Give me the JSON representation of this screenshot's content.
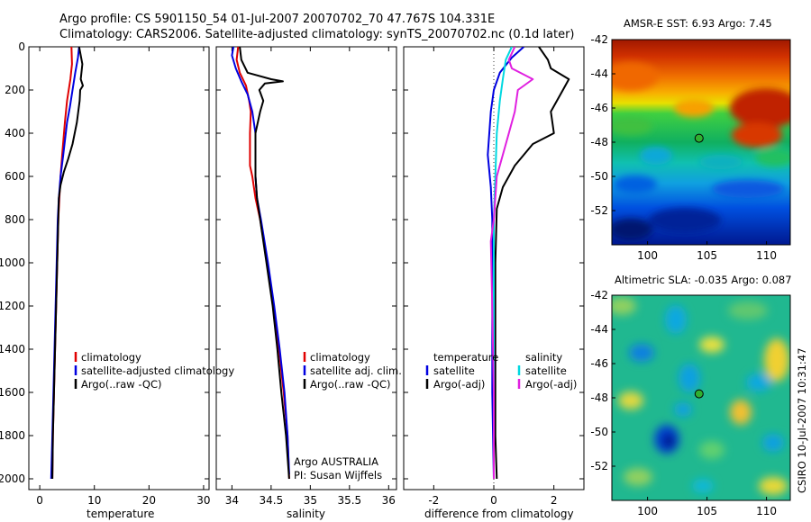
{
  "header": {
    "line1": "Argo profile: CS 5901150_54 01-Jul-2007 20070702_70 47.767S 104.331E",
    "line2": "Climatology: CARS2006. Satellite-adjusted climatology: synTS_20070702.nc (0.1d later)"
  },
  "credit": "CSIRO 10-Jul-2007 10:31:47",
  "colors": {
    "climatology": "#e00000",
    "satellite": "#0000e0",
    "argo": "#000000",
    "sal_satellite": "#00d8e0",
    "sal_argo": "#e020e0"
  },
  "chart_data": [
    {
      "type": "line",
      "xlabel": "temperature",
      "xlim": [
        -2,
        31
      ],
      "ylim": [
        2050,
        0
      ],
      "xticks": [
        0,
        10,
        20,
        30
      ],
      "yticks": [
        0,
        200,
        400,
        600,
        800,
        1000,
        1200,
        1400,
        1600,
        1800,
        2000
      ],
      "legend": [
        "climatology",
        "satellite-adjusted climatology",
        "Argo(..raw -QC)"
      ],
      "series": [
        {
          "name": "climatology",
          "color": "#e00000",
          "points": [
            [
              5.8,
              0
            ],
            [
              5.9,
              80
            ],
            [
              5.6,
              150
            ],
            [
              5.0,
              250
            ],
            [
              4.6,
              350
            ],
            [
              4.1,
              500
            ],
            [
              3.8,
              600
            ],
            [
              3.6,
              700
            ],
            [
              3.4,
              800
            ],
            [
              3.2,
              1000
            ],
            [
              3.0,
              1200
            ],
            [
              2.8,
              1400
            ],
            [
              2.6,
              1600
            ],
            [
              2.4,
              1800
            ],
            [
              2.3,
              2000
            ]
          ]
        },
        {
          "name": "satellite-adjusted climatology",
          "color": "#0000e0",
          "points": [
            [
              7.2,
              0
            ],
            [
              7.0,
              50
            ],
            [
              6.5,
              120
            ],
            [
              6.0,
              200
            ],
            [
              5.5,
              280
            ],
            [
              5.0,
              350
            ],
            [
              4.3,
              500
            ],
            [
              3.8,
              600
            ],
            [
              3.5,
              700
            ],
            [
              3.3,
              800
            ],
            [
              3.1,
              1000
            ],
            [
              2.9,
              1200
            ],
            [
              2.7,
              1400
            ],
            [
              2.5,
              1600
            ],
            [
              2.3,
              1800
            ],
            [
              2.1,
              2000
            ]
          ]
        },
        {
          "name": "Argo(..raw -QC)",
          "color": "#000000",
          "points": [
            [
              7.2,
              0
            ],
            [
              7.8,
              80
            ],
            [
              7.5,
              150
            ],
            [
              7.9,
              180
            ],
            [
              7.4,
              200
            ],
            [
              7.3,
              250
            ],
            [
              6.8,
              350
            ],
            [
              6.0,
              450
            ],
            [
              5.2,
              520
            ],
            [
              4.4,
              580
            ],
            [
              3.8,
              640
            ],
            [
              3.5,
              700
            ],
            [
              3.4,
              800
            ],
            [
              3.2,
              1000
            ],
            [
              3.0,
              1200
            ],
            [
              2.8,
              1400
            ],
            [
              2.6,
              1600
            ],
            [
              2.4,
              1800
            ],
            [
              2.3,
              2000
            ]
          ]
        }
      ]
    },
    {
      "type": "line",
      "xlabel": "salinity",
      "xlim": [
        33.8,
        36.1
      ],
      "ylim": [
        2050,
        0
      ],
      "xticks": [
        34,
        34.5,
        35,
        35.5,
        36
      ],
      "yticks": [
        0,
        200,
        400,
        600,
        800,
        1000,
        1200,
        1400,
        1600,
        1800,
        2000
      ],
      "legend": [
        "climatology",
        "satellite adj. clim.",
        "Argo(..raw -QC)"
      ],
      "annotation": [
        "Argo AUSTRALIA",
        "PI: Susan Wijffels"
      ],
      "series": [
        {
          "name": "climatology",
          "color": "#e00000",
          "points": [
            [
              34.08,
              0
            ],
            [
              34.06,
              60
            ],
            [
              34.1,
              120
            ],
            [
              34.18,
              180
            ],
            [
              34.22,
              250
            ],
            [
              34.24,
              300
            ],
            [
              34.23,
              400
            ],
            [
              34.23,
              550
            ],
            [
              34.26,
              600
            ],
            [
              34.3,
              700
            ],
            [
              34.36,
              800
            ],
            [
              34.45,
              1000
            ],
            [
              34.53,
              1200
            ],
            [
              34.6,
              1400
            ],
            [
              34.66,
              1600
            ],
            [
              34.71,
              1800
            ],
            [
              34.73,
              2000
            ]
          ]
        },
        {
          "name": "satellite adj. clim.",
          "color": "#0000e0",
          "points": [
            [
              34.02,
              0
            ],
            [
              34.0,
              40
            ],
            [
              34.05,
              100
            ],
            [
              34.12,
              160
            ],
            [
              34.2,
              220
            ],
            [
              34.26,
              300
            ],
            [
              34.3,
              400
            ],
            [
              34.3,
              500
            ],
            [
              34.3,
              600
            ],
            [
              34.32,
              700
            ],
            [
              34.37,
              800
            ],
            [
              34.46,
              1000
            ],
            [
              34.54,
              1200
            ],
            [
              34.61,
              1400
            ],
            [
              34.67,
              1600
            ],
            [
              34.71,
              1800
            ],
            [
              34.73,
              1980
            ]
          ]
        },
        {
          "name": "Argo(..raw -QC)",
          "color": "#000000",
          "points": [
            [
              34.1,
              0
            ],
            [
              34.12,
              60
            ],
            [
              34.2,
              120
            ],
            [
              34.5,
              150
            ],
            [
              34.65,
              160
            ],
            [
              34.42,
              170
            ],
            [
              34.35,
              200
            ],
            [
              34.4,
              250
            ],
            [
              34.36,
              300
            ],
            [
              34.3,
              400
            ],
            [
              34.3,
              500
            ],
            [
              34.3,
              600
            ],
            [
              34.32,
              700
            ],
            [
              34.36,
              800
            ],
            [
              34.44,
              1000
            ],
            [
              34.52,
              1200
            ],
            [
              34.58,
              1400
            ],
            [
              34.63,
              1600
            ],
            [
              34.69,
              1800
            ],
            [
              34.73,
              2000
            ]
          ]
        }
      ]
    },
    {
      "type": "line",
      "xlabel": "difference from climatology",
      "xlim": [
        -3,
        3
      ],
      "ylim": [
        2050,
        0
      ],
      "xticks": [
        -2,
        0,
        2
      ],
      "yticks": [
        0,
        200,
        400,
        600,
        800,
        1000,
        1200,
        1400,
        1600,
        1800,
        2000
      ],
      "legend_groups": [
        {
          "heading": "temperature",
          "items": [
            "satellite",
            "Argo(-adj)"
          ]
        },
        {
          "heading": "salinity",
          "items": [
            "satellite",
            "Argo(-adj)"
          ]
        }
      ],
      "series": [
        {
          "name": "temperature satellite",
          "color": "#0000e0",
          "points": [
            [
              1.0,
              0
            ],
            [
              0.6,
              50
            ],
            [
              0.2,
              120
            ],
            [
              0.0,
              200
            ],
            [
              -0.1,
              300
            ],
            [
              -0.2,
              500
            ],
            [
              -0.1,
              650
            ],
            [
              -0.05,
              800
            ],
            [
              -0.05,
              1200
            ],
            [
              -0.05,
              1600
            ],
            [
              0.0,
              2000
            ]
          ]
        },
        {
          "name": "temperature Argo(-adj)",
          "color": "#000000",
          "points": [
            [
              1.5,
              0
            ],
            [
              1.8,
              60
            ],
            [
              1.9,
              100
            ],
            [
              2.5,
              150
            ],
            [
              2.3,
              200
            ],
            [
              1.9,
              300
            ],
            [
              2.0,
              400
            ],
            [
              1.3,
              450
            ],
            [
              0.7,
              550
            ],
            [
              0.3,
              650
            ],
            [
              0.1,
              750
            ],
            [
              0.05,
              1000
            ],
            [
              0.05,
              1400
            ],
            [
              0.05,
              1800
            ],
            [
              0.1,
              2000
            ]
          ]
        },
        {
          "name": "salinity satellite",
          "color": "#00d8e0",
          "points": [
            [
              0.6,
              0
            ],
            [
              0.4,
              60
            ],
            [
              0.3,
              150
            ],
            [
              0.2,
              250
            ],
            [
              0.1,
              400
            ],
            [
              0.05,
              600
            ],
            [
              0.0,
              800
            ],
            [
              0.0,
              1200
            ],
            [
              0.0,
              1600
            ],
            [
              0.0,
              2000
            ]
          ]
        },
        {
          "name": "salinity Argo(-adj)",
          "color": "#e020e0",
          "points": [
            [
              0.7,
              0
            ],
            [
              0.5,
              60
            ],
            [
              0.6,
              100
            ],
            [
              1.3,
              150
            ],
            [
              0.8,
              200
            ],
            [
              0.7,
              300
            ],
            [
              0.5,
              400
            ],
            [
              0.3,
              500
            ],
            [
              0.1,
              600
            ],
            [
              0.0,
              800
            ],
            [
              -0.1,
              900
            ],
            [
              -0.05,
              1200
            ],
            [
              0.0,
              1600
            ],
            [
              0.0,
              2000
            ]
          ]
        }
      ]
    },
    {
      "type": "heatmap",
      "title": "AMSR-E SST: 6.93 Argo: 7.45",
      "xlim": [
        97,
        112
      ],
      "ylim": [
        -54,
        -42
      ],
      "xticks": [
        100,
        105,
        110
      ],
      "yticks": [
        -42,
        -44,
        -46,
        -48,
        -50,
        -52
      ],
      "marker": [
        104.331,
        -47.767
      ]
    },
    {
      "type": "heatmap",
      "title": "Altimetric SLA: -0.035 Argo: 0.087",
      "xlim": [
        97,
        112
      ],
      "ylim": [
        -54,
        -42
      ],
      "xticks": [
        100,
        105,
        110
      ],
      "yticks": [
        -42,
        -44,
        -46,
        -48,
        -50,
        -52
      ],
      "marker": [
        104.331,
        -47.767
      ]
    }
  ]
}
